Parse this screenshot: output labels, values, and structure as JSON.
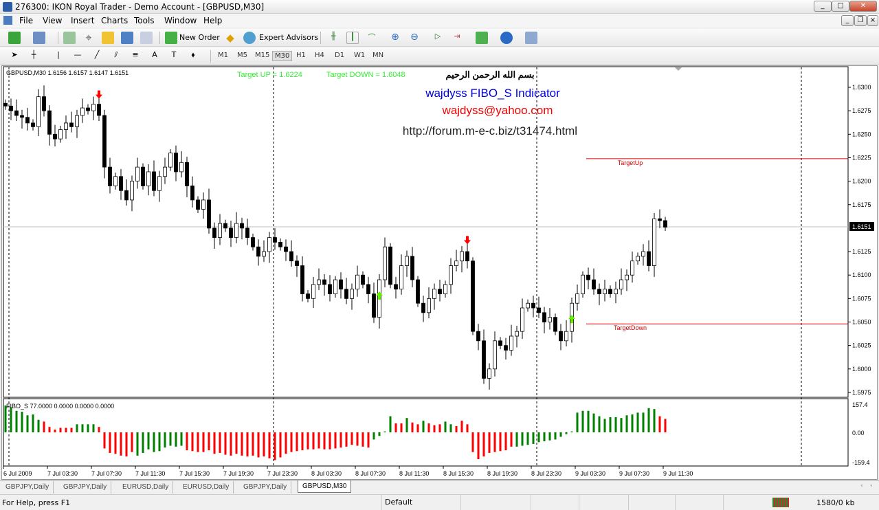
{
  "window": {
    "title": "276300: IKON Royal Trader - Demo Account - [GBPUSD,M30]"
  },
  "menu": [
    "File",
    "View",
    "Insert",
    "Charts",
    "Tools",
    "Window",
    "Help"
  ],
  "toolbar": {
    "new_order": "New Order",
    "expert_advisors": "Expert Advisors"
  },
  "timeframes": [
    "M1",
    "M5",
    "M15",
    "M30",
    "H1",
    "H4",
    "D1",
    "W1",
    "MN"
  ],
  "selected_timeframe": "M30",
  "chart": {
    "header": "GBPUSD,M30  1.6156 1.6157 1.6147 1.6151",
    "target_up_text": "Target UP = 1.6224",
    "target_down_text": "Target DOWN = 1.6048",
    "arabic": "بسم الله الرحمن الرحيم",
    "indicator_name": "wajdyss FIBO_S Indicator",
    "email": "wajdyss@yahoo.com",
    "url": "http://forum.m-e-c.biz/t31474.html",
    "target_up_label": "TargetUp",
    "target_down_label": "TargetDown",
    "target_up": 1.6224,
    "target_down": 1.6048,
    "bid": 1.6151,
    "bid_label": "1.6151",
    "price_ticks": [
      "1.6300",
      "1.6275",
      "1.6250",
      "1.6225",
      "1.6200",
      "1.6175",
      "1.6125",
      "1.6100",
      "1.6075",
      "1.6050",
      "1.6025",
      "1.6000",
      "1.5975"
    ],
    "time_labels": [
      "6 Jul 2009",
      "7 Jul 03:30",
      "7 Jul 07:30",
      "7 Jul 11:30",
      "7 Jul 15:30",
      "7 Jul 19:30",
      "7 Jul 23:30",
      "8 Jul 03:30",
      "8 Jul 07:30",
      "8 Jul 11:30",
      "8 Jul 15:30",
      "8 Jul 19:30",
      "8 Jul 23:30",
      "9 Jul 03:30",
      "9 Jul 07:30",
      "9 Jul 11:30"
    ],
    "closes": [
      1.628,
      1.6275,
      1.627,
      1.6268,
      1.6262,
      1.6258,
      1.629,
      1.6275,
      1.625,
      1.6245,
      1.6255,
      1.6262,
      1.6258,
      1.627,
      1.6278,
      1.6275,
      1.6282,
      1.627,
      1.6215,
      1.6195,
      1.6205,
      1.619,
      1.618,
      1.62,
      1.6215,
      1.6195,
      1.621,
      1.619,
      1.6205,
      1.6215,
      1.623,
      1.621,
      1.622,
      1.6195,
      1.618,
      1.617,
      1.618,
      1.615,
      1.614,
      1.6155,
      1.615,
      1.614,
      1.6155,
      1.615,
      1.614,
      1.613,
      1.612,
      1.6125,
      1.614,
      1.6135,
      1.613,
      1.6125,
      1.6115,
      1.611,
      1.608,
      1.6075,
      1.609,
      1.6095,
      1.609,
      1.608,
      1.6095,
      1.6085,
      1.6075,
      1.6085,
      1.61,
      1.609,
      1.608,
      1.6055,
      1.6095,
      1.613,
      1.609,
      1.6085,
      1.611,
      1.612,
      1.6095,
      1.607,
      1.606,
      1.6075,
      1.6085,
      1.608,
      1.609,
      1.611,
      1.6115,
      1.6125,
      1.6115,
      1.604,
      1.603,
      1.599,
      1.6,
      1.603,
      1.6025,
      1.602,
      1.6035,
      1.604,
      1.6065,
      1.607,
      1.6065,
      1.606,
      1.605,
      1.6055,
      1.604,
      1.603,
      1.604,
      1.607,
      1.608,
      1.61,
      1.6095,
      1.6085,
      1.608,
      1.6085,
      1.608,
      1.6085,
      1.6095,
      1.61,
      1.6115,
      1.612,
      1.6125,
      1.611,
      1.616,
      1.6158,
      1.6151
    ],
    "signals": [
      {
        "bar": 17,
        "type": "sell"
      },
      {
        "bar": 84,
        "type": "sell"
      },
      {
        "bar": 68,
        "type": "buy"
      },
      {
        "bar": 103,
        "type": "buy"
      }
    ],
    "colors": {
      "bull": "#ffffff",
      "bear": "#000000",
      "target": "#e00000",
      "up": "#008000",
      "down": "#ff0000",
      "arrow_buy": "#66ee00",
      "arrow_sell": "#ff0000"
    }
  },
  "indicator": {
    "label": "FIBO_S 77.0000 0.0000 0.0000 0.0000",
    "max_label": "157.4",
    "zero_label": "0.00",
    "min_label": "-159.4",
    "range": [
      -159.4,
      157.4
    ],
    "values": [
      150,
      140,
      120,
      115,
      95,
      100,
      70,
      60,
      30,
      15,
      25,
      25,
      25,
      45,
      45,
      45,
      45,
      30,
      -90,
      -115,
      -120,
      -130,
      -135,
      -110,
      -130,
      -115,
      -95,
      -110,
      -105,
      -85,
      -75,
      -80,
      -75,
      -100,
      -105,
      -110,
      -110,
      -100,
      -120,
      -115,
      -125,
      -130,
      -120,
      -130,
      -135,
      -130,
      -140,
      -135,
      -145,
      -155,
      -140,
      -120,
      -110,
      -105,
      -100,
      -95,
      -95,
      -90,
      -95,
      -95,
      -90,
      -85,
      -80,
      -70,
      -75,
      -80,
      -85,
      -40,
      -20,
      5,
      90,
      50,
      50,
      80,
      55,
      45,
      65,
      50,
      40,
      45,
      60,
      45,
      35,
      65,
      45,
      -110,
      -150,
      -135,
      -115,
      -110,
      -105,
      -100,
      -80,
      -80,
      -75,
      -70,
      -65,
      -55,
      -50,
      -45,
      -40,
      -25,
      -10,
      5,
      110,
      120,
      120,
      105,
      90,
      75,
      85,
      85,
      80,
      95,
      100,
      110,
      110,
      135,
      130,
      90,
      75
    ],
    "colors": "ggggggg rrrrr rgggg r rrrrrr ggggggggg rrrrrrrrrrrrrrrrrrrrrrrrrrrrrrrrrr ggg gr rgrrgrrrggrr rrrrrrrrr gggggggg g ggggggggggggggggg"
  },
  "tabs": [
    "GBPJPY,Daily",
    "GBPJPY,Daily",
    "EURUSD,Daily",
    "EURUSD,Daily",
    "GBPJPY,Daily",
    "GBPUSD,M30"
  ],
  "active_tab": "GBPUSD,M30",
  "status": {
    "help": "For Help, press F1",
    "profile": "Default",
    "traffic": "1580/0 kb"
  }
}
